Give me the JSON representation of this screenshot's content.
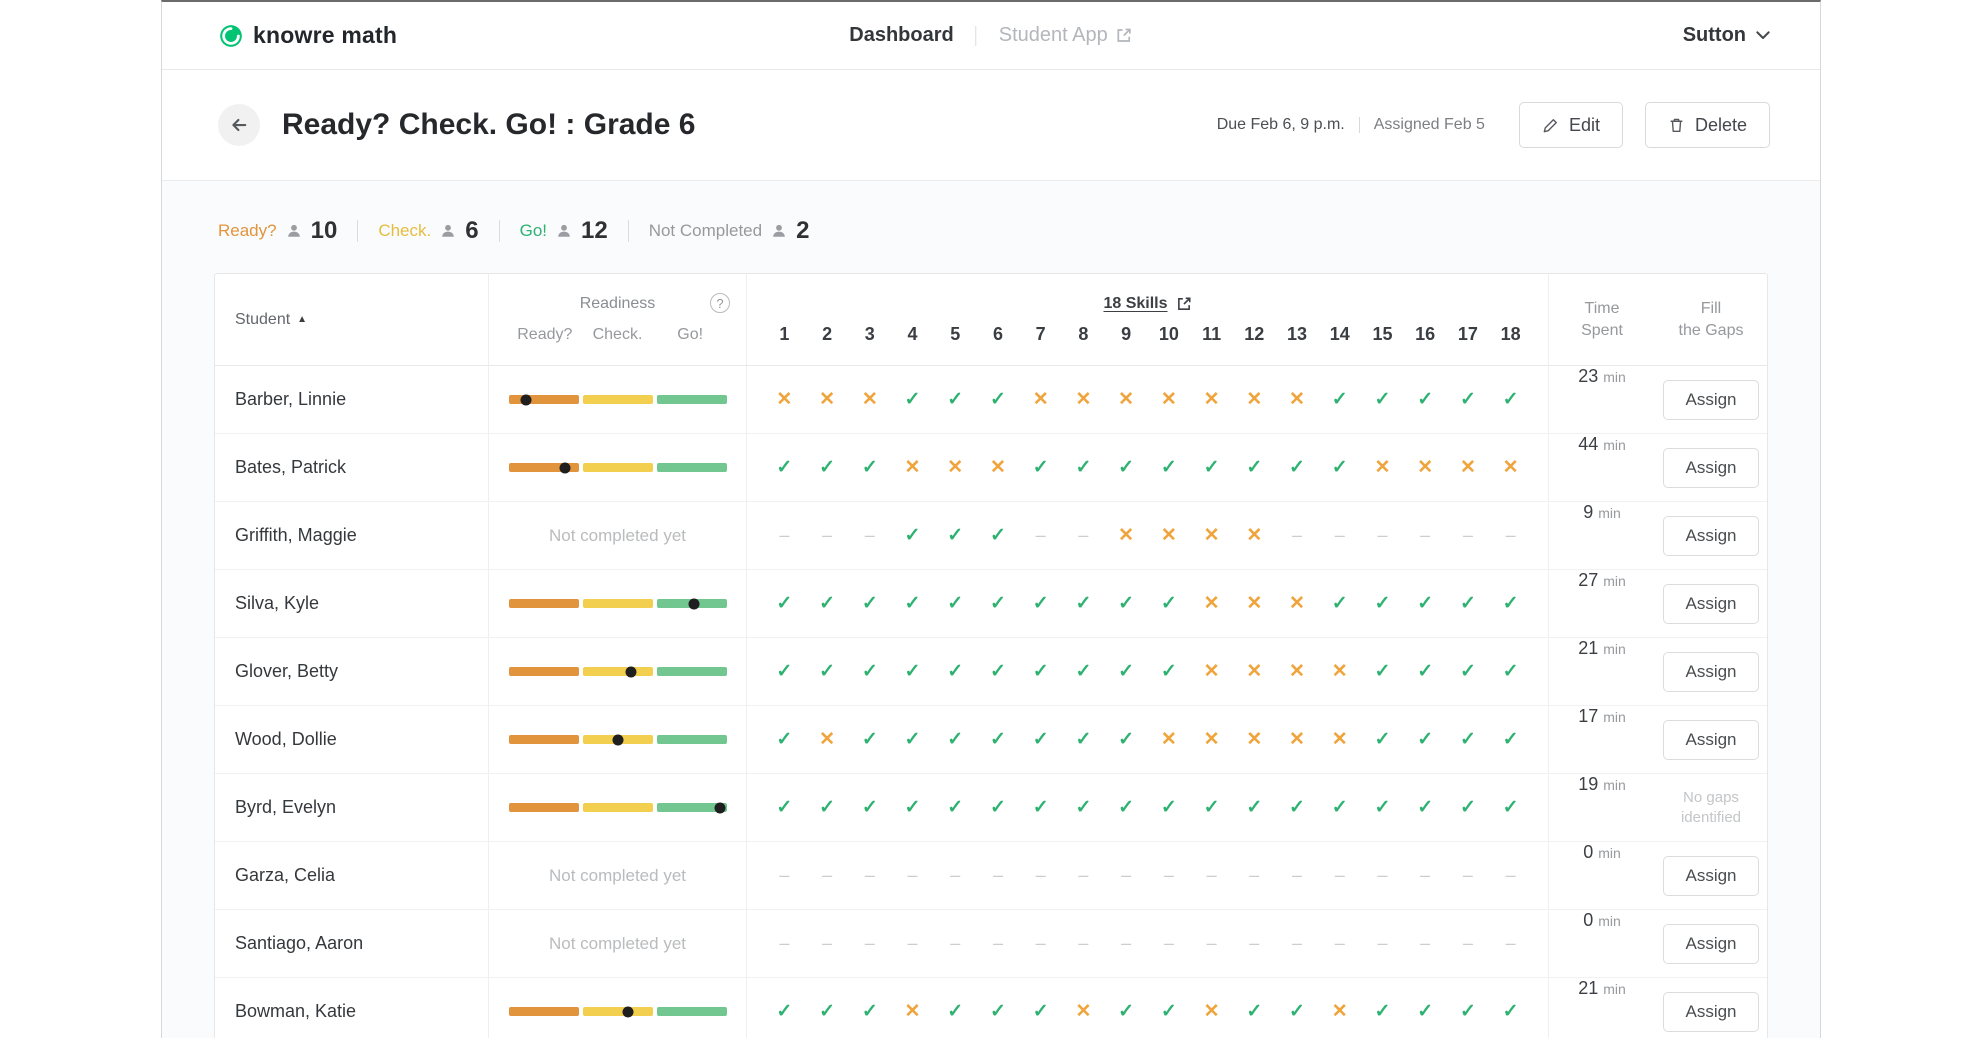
{
  "colors": {
    "ready_segment": "#e2943c",
    "check_segment": "#f2cf4e",
    "go_segment": "#72c690",
    "mark_check": "#2db271",
    "mark_x": "#f0a43c",
    "mark_dash": "#cbcdcf",
    "logo_green": "#00c373",
    "readiness_dot": "#1f1f1f"
  },
  "icons": {
    "check": "✓",
    "x": "✕",
    "dash": "–",
    "sort_asc": "▲",
    "help": "?"
  },
  "nav": {
    "logo_text": "knowre math",
    "dashboard_label": "Dashboard",
    "student_app_label": "Student App",
    "user": "Sutton"
  },
  "header": {
    "title": "Ready? Check. Go! : Grade 6",
    "due": "Due Feb 6, 9 p.m.",
    "assigned": "Assigned Feb 5",
    "edit_label": "Edit",
    "delete_label": "Delete"
  },
  "summary": [
    {
      "label": "Ready?",
      "count": "10",
      "color": "#e2943c"
    },
    {
      "label": "Check.",
      "count": "6",
      "color": "#e5bd3e"
    },
    {
      "label": "Go!",
      "count": "12",
      "color": "#2db271"
    },
    {
      "label": "Not Completed",
      "count": "2",
      "color": "#97999d"
    }
  ],
  "table": {
    "student_header": "Student",
    "readiness_header": "Readiness",
    "readiness_subcols": [
      "Ready?",
      "Check.",
      "Go!"
    ],
    "skills_header": "18 Skills",
    "skill_numbers": [
      "1",
      "2",
      "3",
      "4",
      "5",
      "6",
      "7",
      "8",
      "9",
      "10",
      "11",
      "12",
      "13",
      "14",
      "15",
      "16",
      "17",
      "18"
    ],
    "time_header_line1": "Time",
    "time_header_line2": "Spent",
    "gaps_header_line1": "Fill",
    "gaps_header_line2": "the Gaps",
    "not_completed_text": "Not completed yet",
    "assign_label": "Assign",
    "no_gaps_line1": "No gaps",
    "no_gaps_line2": "identified",
    "time_unit": "min",
    "rows": [
      {
        "name": "Barber, Linnie",
        "status": "completed",
        "dot": 0.08,
        "skills": "xxxcccxxxxxxxccccc",
        "time": "23",
        "gaps": "assign"
      },
      {
        "name": "Bates, Patrick",
        "status": "completed",
        "dot": 0.26,
        "skills": "cccxxxccccccccxxxx",
        "time": "44",
        "gaps": "assign"
      },
      {
        "name": "Griffith, Maggie",
        "status": "not_completed",
        "dot": 0,
        "skills": "dddcccddxxxxdddddd",
        "time": "9",
        "gaps": "assign"
      },
      {
        "name": "Silva, Kyle",
        "status": "completed",
        "dot": 0.85,
        "skills": "ccccccccccxxxccccc",
        "time": "27",
        "gaps": "assign"
      },
      {
        "name": "Glover, Betty",
        "status": "completed",
        "dot": 0.56,
        "skills": "ccccccccccxxxxcccc",
        "time": "21",
        "gaps": "assign"
      },
      {
        "name": "Wood, Dollie",
        "status": "completed",
        "dot": 0.5,
        "skills": "cxcccccccxxxxxcccc",
        "time": "17",
        "gaps": "assign"
      },
      {
        "name": "Byrd, Evelyn",
        "status": "completed",
        "dot": 0.97,
        "skills": "cccccccccccccccccc",
        "time": "19",
        "gaps": "none"
      },
      {
        "name": "Garza, Celia",
        "status": "not_completed",
        "dot": 0,
        "skills": "dddddddddddddddddd",
        "time": "0",
        "gaps": "assign"
      },
      {
        "name": "Santiago, Aaron",
        "status": "not_completed",
        "dot": 0,
        "skills": "dddddddddddddddddd",
        "time": "0",
        "gaps": "assign"
      },
      {
        "name": "Bowman, Katie",
        "status": "completed",
        "dot": 0.55,
        "skills": "cccxcccxccxccxcccc",
        "time": "21",
        "gaps": "assign"
      }
    ]
  }
}
